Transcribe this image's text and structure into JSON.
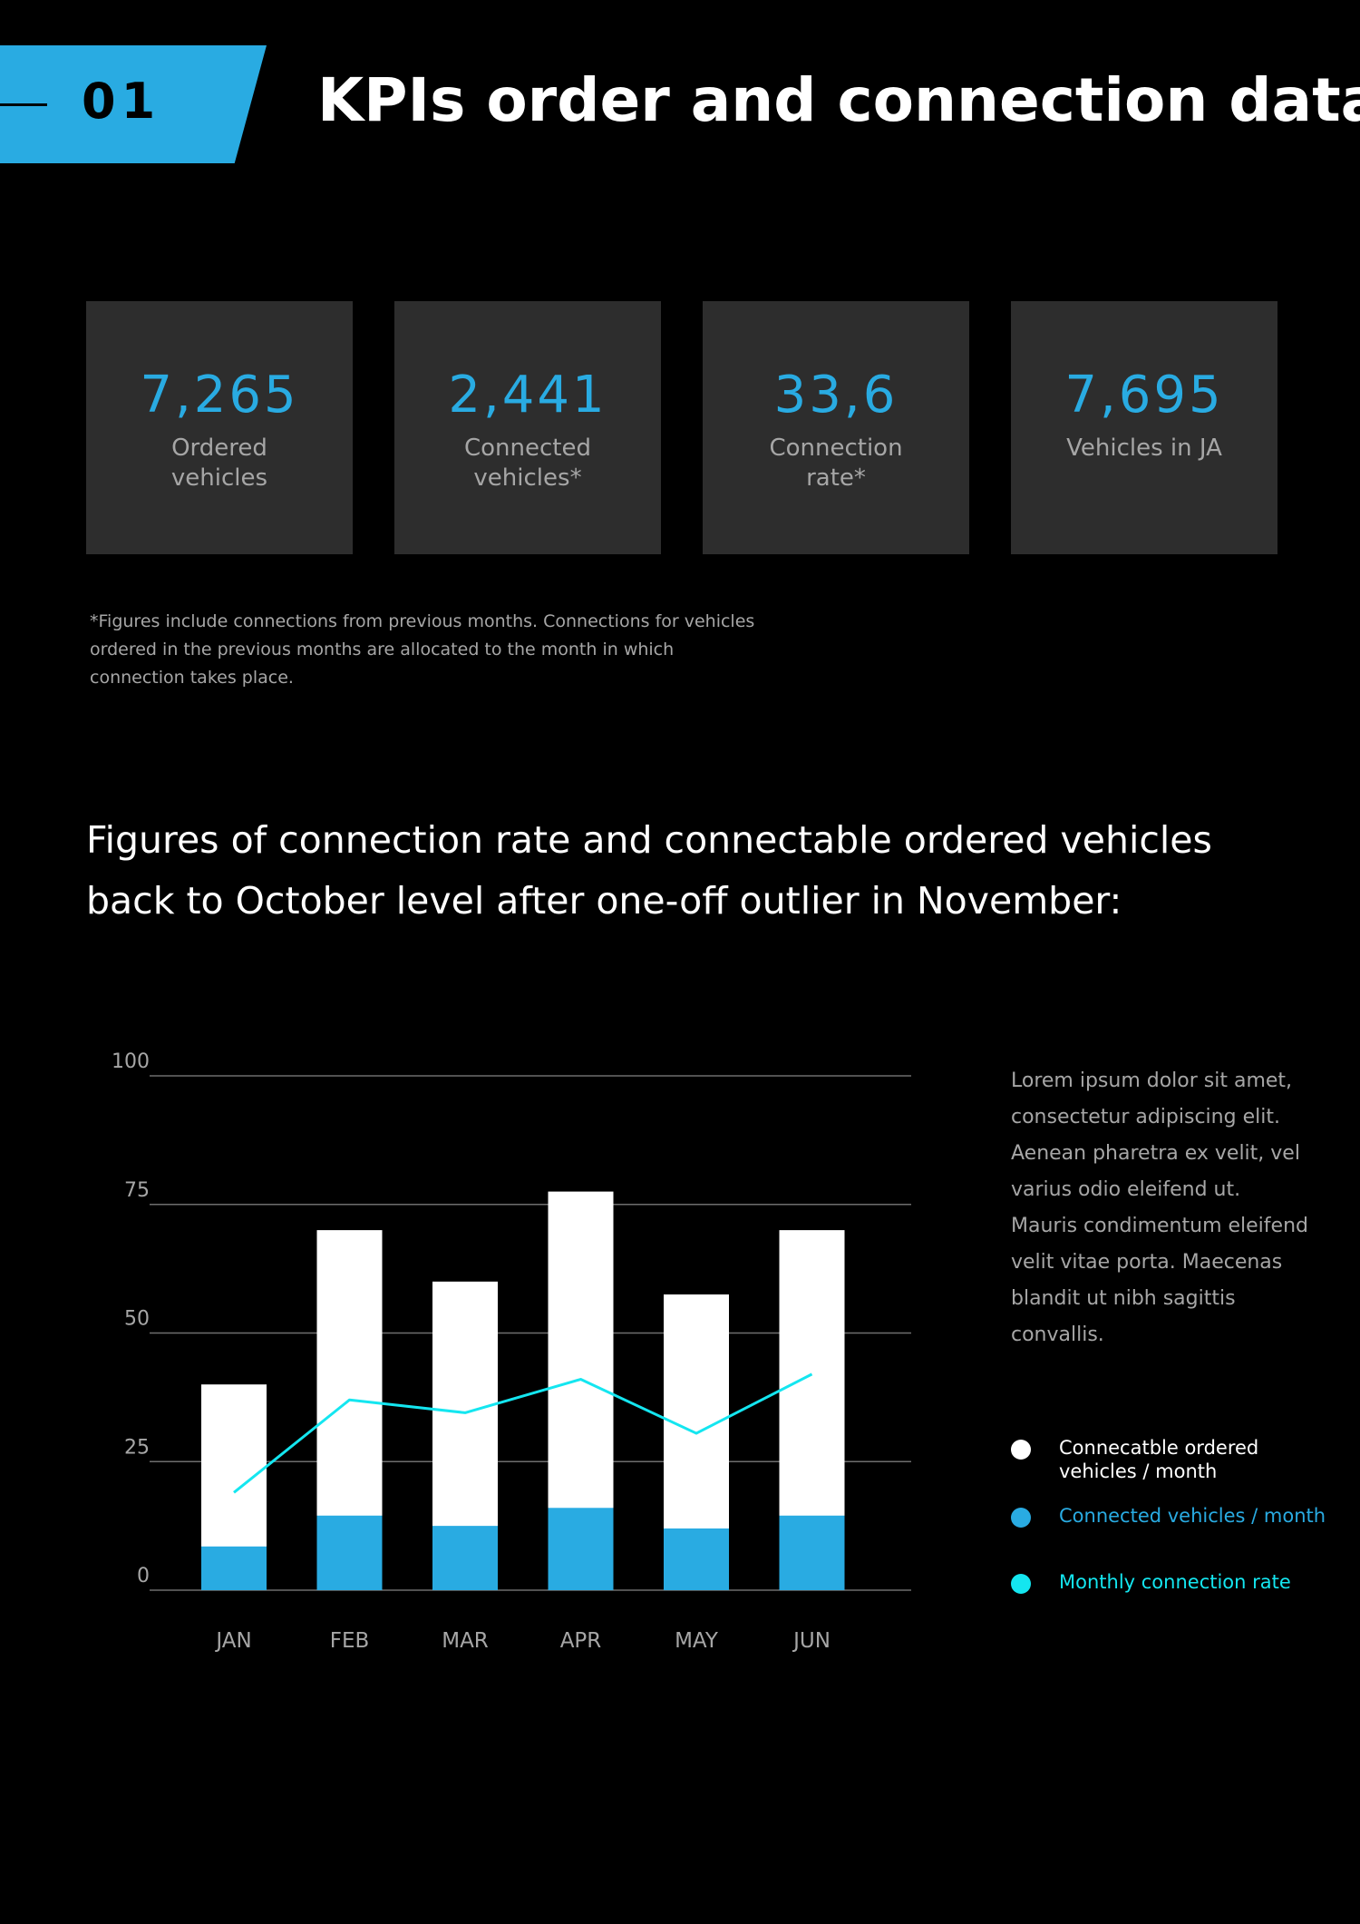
{
  "header": {
    "section_number": "01",
    "title": "KPIs order and connection data"
  },
  "kpis": [
    {
      "value": "7,265",
      "label": "Ordered vehicles"
    },
    {
      "value": "2,441",
      "label": "Connected vehicles*"
    },
    {
      "value": "33,6",
      "label": "Connection rate*"
    },
    {
      "value": "7,695",
      "label": "Vehicles in JA"
    }
  ],
  "footnote": "*Figures include connections from previous months. Connections for vehicles ordered in the previous months are allocated to the month in which connection takes place.",
  "headline": "Figures of connection rate and connectable ordered vehicles back to October level after one-off outlier in November:",
  "side_text": "Lorem ipsum dolor sit amet, consectetur adipiscing elit. Aenean pharetra ex velit, vel varius odio eleifend ut. Mauris condimentum eleifend velit vitae porta. Maecenas blandit ut nibh sagittis convallis.",
  "colors": {
    "accent": "#29abe2",
    "background": "#000000",
    "card": "#2d2d2d",
    "muted_text": "#a6a6a6",
    "line": "#14e6f0"
  },
  "chart_data": {
    "type": "bar",
    "categories": [
      "JAN",
      "FEB",
      "MAR",
      "APR",
      "MAY",
      "JUN"
    ],
    "series": [
      {
        "name": "Connecatble ordered vehicles / month",
        "values": [
          40,
          70,
          60,
          77.5,
          57.5,
          70
        ],
        "color": "#ffffff",
        "kind": "bar"
      },
      {
        "name": "Connected vehicles / month",
        "values": [
          8.5,
          14.5,
          12.5,
          16,
          12,
          14.5
        ],
        "color": "#29abe2",
        "kind": "bar-overlay"
      },
      {
        "name": "Monthly connection rate",
        "values": [
          19,
          37,
          34.5,
          41,
          30.5,
          42
        ],
        "color": "#14e6f0",
        "kind": "line"
      }
    ],
    "y_ticks": [
      "100",
      "75",
      "50",
      "25",
      "0"
    ],
    "ylim": [
      0,
      100
    ],
    "grid": true,
    "legend_position": "right"
  }
}
